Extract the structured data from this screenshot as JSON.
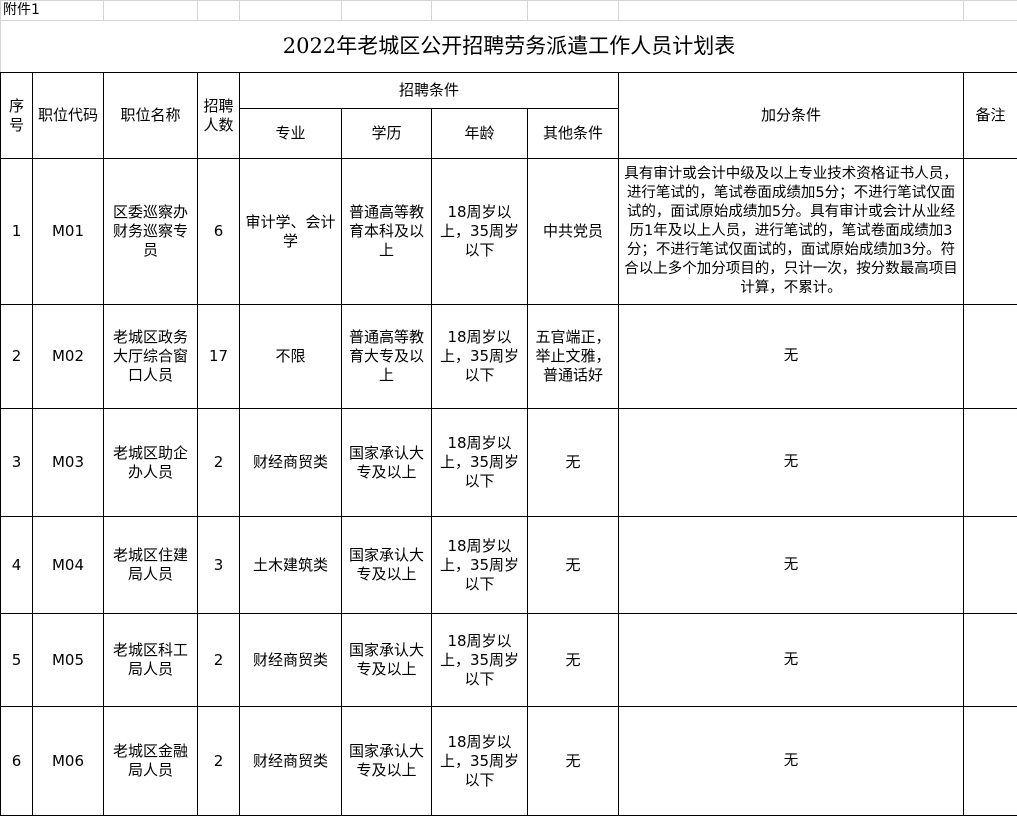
{
  "attachment_label": "附件1",
  "title": "2022年老城区公开招聘劳务派遣工作人员计划表",
  "headers": {
    "seq": "序号",
    "code": "职位代码",
    "name": "职位名称",
    "count": "招聘人数",
    "conditions": "招聘条件",
    "major": "专业",
    "education": "学历",
    "age": "年龄",
    "other": "其他条件",
    "bonus": "加分条件",
    "remarks": "备注"
  },
  "rows": [
    {
      "seq": "1",
      "code": "M01",
      "name": "区委巡察办财务巡察专员",
      "count": "6",
      "major": "审计学、会计学",
      "education": "普通高等教育本科及以上",
      "age": "18周岁以上，35周岁以下",
      "other": "中共党员",
      "bonus": "具有审计或会计中级及以上专业技术资格证书人员，进行笔试的，笔试卷面成绩加5分；不进行笔试仅面试的，面试原始成绩加5分。具有审计或会计从业经历1年及以上人员，进行笔试的，笔试卷面成绩加3分；不进行笔试仅面试的，面试原始成绩加3分。符合以上多个加分项目的，只计一次，按分数最高项目计算，不累计。",
      "remarks": ""
    },
    {
      "seq": "2",
      "code": "M02",
      "name": "老城区政务大厅综合窗口人员",
      "count": "17",
      "major": "不限",
      "education": "普通高等教育大专及以上",
      "age": "18周岁以上，35周岁以下",
      "other": "五官端正，举止文雅，普通话好",
      "bonus": "无",
      "remarks": ""
    },
    {
      "seq": "3",
      "code": "M03",
      "name": "老城区助企办人员",
      "count": "2",
      "major": "财经商贸类",
      "education": "国家承认大专及以上",
      "age": "18周岁以上，35周岁以下",
      "other": "无",
      "bonus": "无",
      "remarks": ""
    },
    {
      "seq": "4",
      "code": "M04",
      "name": "老城区住建局人员",
      "count": "3",
      "major": "土木建筑类",
      "education": "国家承认大专及以上",
      "age": "18周岁以上，35周岁以下",
      "other": "无",
      "bonus": "无",
      "remarks": ""
    },
    {
      "seq": "5",
      "code": "M05",
      "name": "老城区科工局人员",
      "count": "2",
      "major": "财经商贸类",
      "education": "国家承认大专及以上",
      "age": "18周岁以上，35周岁以下",
      "other": "无",
      "bonus": "无",
      "remarks": ""
    },
    {
      "seq": "6",
      "code": "M06",
      "name": "老城区金融局人员",
      "count": "2",
      "major": "财经商贸类",
      "education": "国家承认大专及以上",
      "age": "18周岁以上，35周岁以下",
      "other": "无",
      "bonus": "无",
      "remarks": ""
    }
  ]
}
